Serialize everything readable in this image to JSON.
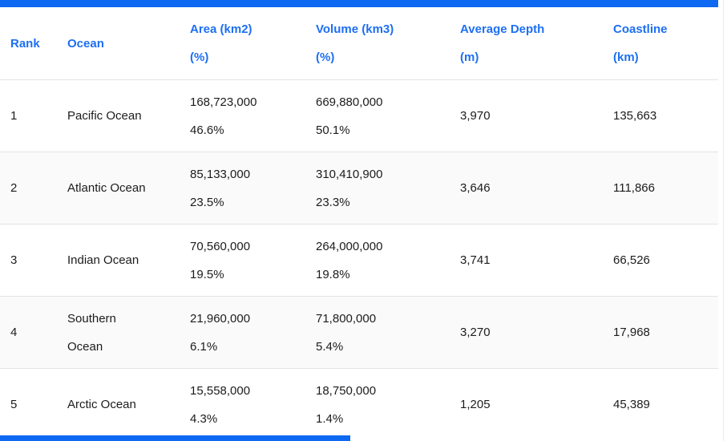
{
  "theme": {
    "accent_bar": "#0d68f2",
    "header_text": "#1d6ff2",
    "body_text": "#1c1c1c",
    "row_border": "#e3e3e3",
    "stripe_bg": "#fafafa",
    "edge_line": "#e9e9e9"
  },
  "table": {
    "columns": {
      "rank": {
        "line1": "Rank",
        "line2": ""
      },
      "ocean": {
        "line1": "Ocean",
        "line2": ""
      },
      "area": {
        "line1": "Area (km2)",
        "line2": "(%)"
      },
      "volume": {
        "line1": "Volume (km3)",
        "line2": "(%)"
      },
      "depth": {
        "line1": "Average Depth",
        "line2": "(m)"
      },
      "coastline": {
        "line1": "Coastline",
        "line2": "(km)"
      }
    },
    "rows": [
      {
        "rank": "1",
        "ocean": "Pacific Ocean",
        "area": "168,723,000",
        "area_pct": "46.6%",
        "volume": "669,880,000",
        "volume_pct": "50.1%",
        "depth": "3,970",
        "coastline": "135,663"
      },
      {
        "rank": "2",
        "ocean": "Atlantic Ocean",
        "area": "85,133,000",
        "area_pct": "23.5%",
        "volume": "310,410,900",
        "volume_pct": "23.3%",
        "depth": "3,646",
        "coastline": "111,866"
      },
      {
        "rank": "3",
        "ocean": "Indian Ocean",
        "area": "70,560,000",
        "area_pct": "19.5%",
        "volume": "264,000,000",
        "volume_pct": "19.8%",
        "depth": "3,741",
        "coastline": "66,526"
      },
      {
        "rank": "4",
        "ocean": "Southern Ocean",
        "area": "21,960,000",
        "area_pct": "6.1%",
        "volume": "71,800,000",
        "volume_pct": "5.4%",
        "depth": "3,270",
        "coastline": "17,968"
      },
      {
        "rank": "5",
        "ocean": "Arctic Ocean",
        "area": "15,558,000",
        "area_pct": "4.3%",
        "volume": "18,750,000",
        "volume_pct": "1.4%",
        "depth": "1,205",
        "coastline": "45,389"
      }
    ]
  }
}
